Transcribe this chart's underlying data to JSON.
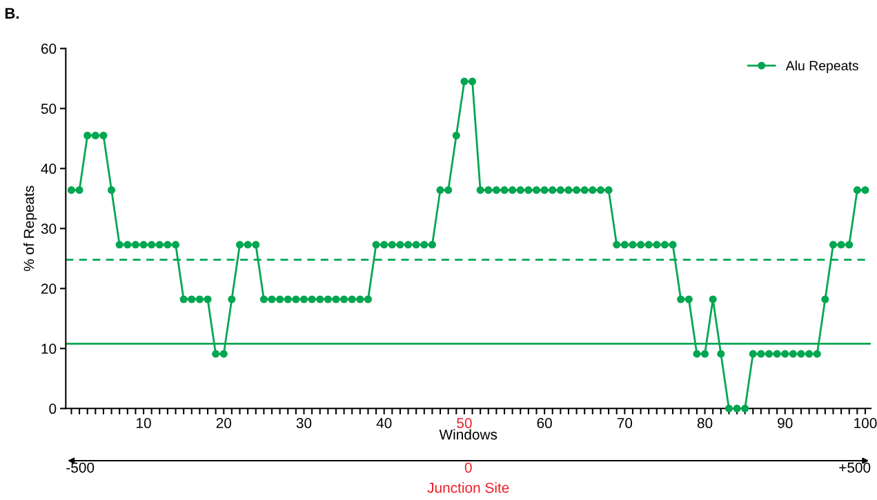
{
  "chart_data": {
    "type": "line",
    "title": "B.",
    "xlabel": "Windows",
    "ylabel": "% of Repeats",
    "x": [
      1,
      2,
      3,
      4,
      5,
      6,
      7,
      8,
      9,
      10,
      11,
      12,
      13,
      14,
      15,
      16,
      17,
      18,
      19,
      20,
      21,
      22,
      23,
      24,
      25,
      26,
      27,
      28,
      29,
      30,
      31,
      32,
      33,
      34,
      35,
      36,
      37,
      38,
      39,
      40,
      41,
      42,
      43,
      44,
      45,
      46,
      47,
      48,
      49,
      50,
      51,
      52,
      53,
      54,
      55,
      56,
      57,
      58,
      59,
      60,
      61,
      62,
      63,
      64,
      65,
      66,
      67,
      68,
      69,
      70,
      71,
      72,
      73,
      74,
      75,
      76,
      77,
      78,
      79,
      80,
      81,
      82,
      83,
      84,
      85,
      86,
      87,
      88,
      89,
      90,
      91,
      92,
      93,
      94,
      95,
      96,
      97,
      98,
      99,
      100
    ],
    "series": [
      {
        "name": "Alu Repeats",
        "color": "#00a651",
        "values": [
          36.4,
          36.4,
          45.5,
          45.5,
          45.5,
          36.4,
          27.3,
          27.3,
          27.3,
          27.3,
          27.3,
          27.3,
          27.3,
          27.3,
          18.2,
          18.2,
          18.2,
          18.2,
          9.1,
          9.1,
          18.2,
          27.3,
          27.3,
          27.3,
          18.2,
          18.2,
          18.2,
          18.2,
          18.2,
          18.2,
          18.2,
          18.2,
          18.2,
          18.2,
          18.2,
          18.2,
          18.2,
          18.2,
          27.3,
          27.3,
          27.3,
          27.3,
          27.3,
          27.3,
          27.3,
          27.3,
          36.4,
          36.4,
          45.5,
          54.5,
          54.5,
          36.4,
          36.4,
          36.4,
          36.4,
          36.4,
          36.4,
          36.4,
          36.4,
          36.4,
          36.4,
          36.4,
          36.4,
          36.4,
          36.4,
          36.4,
          36.4,
          36.4,
          27.3,
          27.3,
          27.3,
          27.3,
          27.3,
          27.3,
          27.3,
          27.3,
          18.2,
          18.2,
          9.1,
          9.1,
          18.2,
          9.1,
          0,
          0,
          0,
          9.1,
          9.1,
          9.1,
          9.1,
          9.1,
          9.1,
          9.1,
          9.1,
          9.1,
          18.2,
          27.3,
          27.3,
          27.3,
          36.4,
          36.4
        ]
      }
    ],
    "xlim": [
      0.3,
      100.7
    ],
    "ylim": [
      0,
      60
    ],
    "xticks": [
      {
        "value": 1,
        "label": null
      },
      {
        "value": 2,
        "label": null
      },
      {
        "value": 3,
        "label": null
      },
      {
        "value": 4,
        "label": null
      },
      {
        "value": 5,
        "label": null
      },
      {
        "value": 6,
        "label": null
      },
      {
        "value": 7,
        "label": null
      },
      {
        "value": 8,
        "label": null
      },
      {
        "value": 9,
        "label": null
      },
      10,
      {
        "value": 11,
        "label": null
      },
      {
        "value": 12,
        "label": null
      },
      {
        "value": 13,
        "label": null
      },
      {
        "value": 14,
        "label": null
      },
      {
        "value": 15,
        "label": null
      },
      {
        "value": 16,
        "label": null
      },
      {
        "value": 17,
        "label": null
      },
      {
        "value": 18,
        "label": null
      },
      {
        "value": 19,
        "label": null
      },
      20,
      {
        "value": 21,
        "label": null
      },
      {
        "value": 22,
        "label": null
      },
      {
        "value": 23,
        "label": null
      },
      {
        "value": 24,
        "label": null
      },
      {
        "value": 25,
        "label": null
      },
      {
        "value": 26,
        "label": null
      },
      {
        "value": 27,
        "label": null
      },
      {
        "value": 28,
        "label": null
      },
      {
        "value": 29,
        "label": null
      },
      30,
      {
        "value": 31,
        "label": null
      },
      {
        "value": 32,
        "label": null
      },
      {
        "value": 33,
        "label": null
      },
      {
        "value": 34,
        "label": null
      },
      {
        "value": 35,
        "label": null
      },
      {
        "value": 36,
        "label": null
      },
      {
        "value": 37,
        "label": null
      },
      {
        "value": 38,
        "label": null
      },
      {
        "value": 39,
        "label": null
      },
      40,
      {
        "value": 41,
        "label": null
      },
      {
        "value": 42,
        "label": null
      },
      {
        "value": 43,
        "label": null
      },
      {
        "value": 44,
        "label": null
      },
      {
        "value": 45,
        "label": null
      },
      {
        "value": 46,
        "label": null
      },
      {
        "value": 47,
        "label": null
      },
      {
        "value": 48,
        "label": null
      },
      {
        "value": 49,
        "label": null
      },
      50,
      {
        "value": 51,
        "label": null
      },
      {
        "value": 52,
        "label": null
      },
      {
        "value": 53,
        "label": null
      },
      {
        "value": 54,
        "label": null
      },
      {
        "value": 55,
        "label": null
      },
      {
        "value": 56,
        "label": null
      },
      {
        "value": 57,
        "label": null
      },
      {
        "value": 58,
        "label": null
      },
      {
        "value": 59,
        "label": null
      },
      60,
      {
        "value": 61,
        "label": null
      },
      {
        "value": 62,
        "label": null
      },
      {
        "value": 63,
        "label": null
      },
      {
        "value": 64,
        "label": null
      },
      {
        "value": 65,
        "label": null
      },
      {
        "value": 66,
        "label": null
      },
      {
        "value": 67,
        "label": null
      },
      {
        "value": 68,
        "label": null
      },
      {
        "value": 69,
        "label": null
      },
      70,
      {
        "value": 71,
        "label": null
      },
      {
        "value": 72,
        "label": null
      },
      {
        "value": 73,
        "label": null
      },
      {
        "value": 74,
        "label": null
      },
      {
        "value": 75,
        "label": null
      },
      {
        "value": 76,
        "label": null
      },
      {
        "value": 77,
        "label": null
      },
      {
        "value": 78,
        "label": null
      },
      {
        "value": 79,
        "label": null
      },
      80,
      {
        "value": 81,
        "label": null
      },
      {
        "value": 82,
        "label": null
      },
      {
        "value": 83,
        "label": null
      },
      {
        "value": 84,
        "label": null
      },
      {
        "value": 85,
        "label": null
      },
      {
        "value": 86,
        "label": null
      },
      {
        "value": 87,
        "label": null
      },
      {
        "value": 88,
        "label": null
      },
      {
        "value": 89,
        "label": null
      },
      90,
      {
        "value": 91,
        "label": null
      },
      {
        "value": 92,
        "label": null
      },
      {
        "value": 93,
        "label": null
      },
      {
        "value": 94,
        "label": null
      },
      {
        "value": 95,
        "label": null
      },
      {
        "value": 96,
        "label": null
      },
      {
        "value": 97,
        "label": null
      },
      {
        "value": 98,
        "label": null
      },
      {
        "value": 99,
        "label": null
      },
      100
    ],
    "yticks": [
      0,
      10,
      20,
      30,
      40,
      50,
      60
    ],
    "x2lim": [
      -500,
      500
    ],
    "x2ticks": [
      {
        "value": -500,
        "label": "-500"
      },
      0,
      {
        "value": 500,
        "label": "+500"
      }
    ],
    "ref_lines": [
      {
        "axis": "y",
        "value": 24.8,
        "color": "#00a651",
        "line_style": "dashed"
      },
      {
        "axis": "y",
        "value": 10.8,
        "color": "#00a651",
        "line_style": "solid"
      }
    ],
    "annotations": [
      "Junction Site"
    ],
    "grid": false,
    "legend": "top right",
    "marker": "circle",
    "line_style": "solid"
  }
}
